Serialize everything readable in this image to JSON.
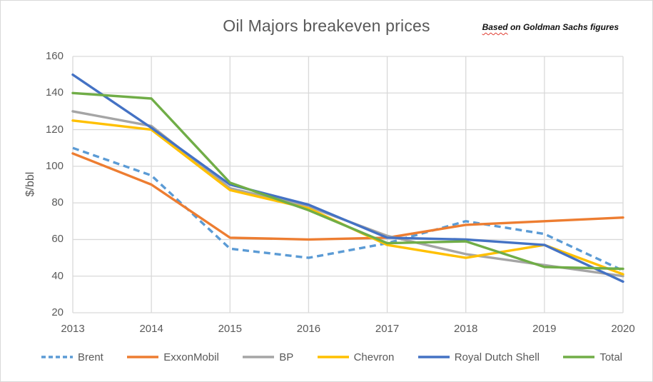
{
  "title": "Oil Majors breakeven prices",
  "note": {
    "misspelled_word": "Based",
    "rest": " on Goldman Sachs figures"
  },
  "chart_data": {
    "type": "line",
    "title": "Oil Majors breakeven prices",
    "annotation": "Based on Goldman Sachs figures",
    "xlabel": "",
    "ylabel": "$/bbl",
    "categories": [
      "2013",
      "2014",
      "2015",
      "2016",
      "2017",
      "2018",
      "2019",
      "2020"
    ],
    "ylim": [
      20,
      160
    ],
    "ytick_step": 20,
    "grid": true,
    "legend_position": "bottom",
    "colors": {
      "grid": "#D9D9D9",
      "text": "#595959",
      "note_underline": "#E03C31"
    },
    "series": [
      {
        "name": "Brent",
        "color": "#5B9BD5",
        "style": "dashed",
        "values": [
          110,
          95,
          55,
          50,
          58,
          70,
          63,
          43
        ]
      },
      {
        "name": "ExxonMobil",
        "color": "#ED7D31",
        "style": "solid",
        "values": [
          107,
          90,
          61,
          60,
          61,
          68,
          70,
          72
        ]
      },
      {
        "name": "BP",
        "color": "#A5A5A5",
        "style": "solid",
        "values": [
          130,
          122,
          88,
          78,
          62,
          52,
          46,
          40
        ]
      },
      {
        "name": "Chevron",
        "color": "#FFC000",
        "style": "solid",
        "values": [
          125,
          120,
          87,
          77,
          57,
          50,
          57,
          41
        ]
      },
      {
        "name": "Royal Dutch Shell",
        "color": "#4472C4",
        "style": "solid",
        "values": [
          150,
          121,
          90,
          79,
          61,
          60,
          57,
          37
        ]
      },
      {
        "name": "Total",
        "color": "#70AD47",
        "style": "solid",
        "values": [
          140,
          137,
          91,
          76,
          58,
          59,
          45,
          44
        ]
      }
    ]
  }
}
